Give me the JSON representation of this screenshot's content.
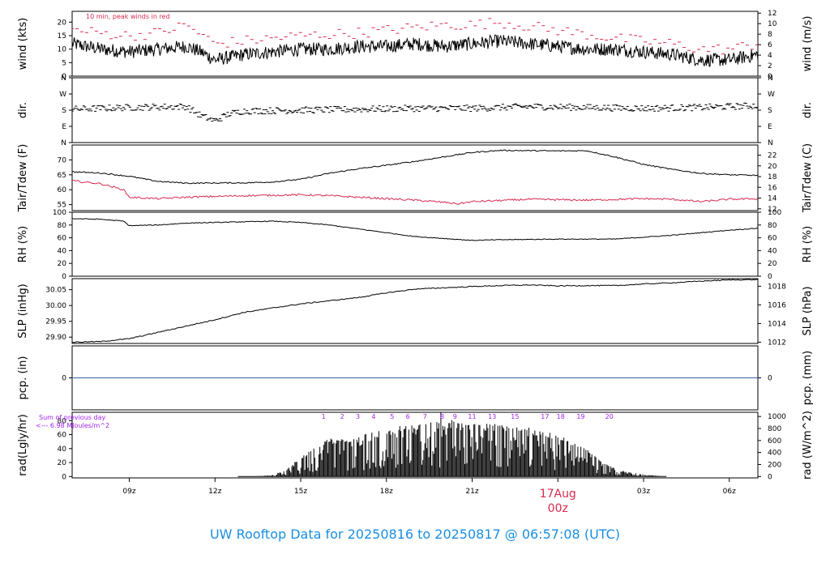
{
  "title": "UW Rooftop Data for 20250816  to  20250817 @ 06:57:08  (UTC)",
  "date_marker": {
    "day": "17Aug",
    "hour": "00z",
    "hours_from_start": 17.0
  },
  "x_axis": {
    "start_hour_utc": 7.0,
    "end_hour_utc": 31.0,
    "ticks": [
      {
        "label": "09z",
        "hours_from_start": 2
      },
      {
        "label": "12z",
        "hours_from_start": 5
      },
      {
        "label": "15z",
        "hours_from_start": 8
      },
      {
        "label": "18z",
        "hours_from_start": 11
      },
      {
        "label": "21z",
        "hours_from_start": 14
      },
      {
        "label": "03z",
        "hours_from_start": 20
      },
      {
        "label": "06z",
        "hours_from_start": 23
      }
    ]
  },
  "chart_data": [
    {
      "id": "wind",
      "type": "line",
      "annotation": "10 min, peak winds in red",
      "left_label": "wind (kts)",
      "right_label": "wind (m/s)",
      "ylim": [
        0,
        24
      ],
      "left_ticks": [
        "0",
        "5",
        "10",
        "15",
        "20"
      ],
      "left_tick_values": [
        0,
        5,
        10,
        15,
        20
      ],
      "right_ticks": [
        "0",
        "2",
        "4",
        "6",
        "8",
        "10",
        "12"
      ],
      "right_tick_values_kts": [
        0,
        3.89,
        7.78,
        11.66,
        15.55,
        19.44,
        23.33
      ],
      "series": [
        {
          "color": "#000000",
          "knots": [
            [
              0,
              12
            ],
            [
              1,
              10
            ],
            [
              2,
              9
            ],
            [
              3,
              10
            ],
            [
              4,
              11
            ],
            [
              4.5,
              9
            ],
            [
              5,
              6
            ],
            [
              6,
              8
            ],
            [
              7,
              9
            ],
            [
              8,
              10
            ],
            [
              9,
              10
            ],
            [
              10,
              11
            ],
            [
              11,
              11
            ],
            [
              12,
              12
            ],
            [
              13,
              11
            ],
            [
              14,
              12
            ],
            [
              15,
              13
            ],
            [
              16,
              12
            ],
            [
              17,
              11
            ],
            [
              18,
              10
            ],
            [
              19,
              10
            ],
            [
              20,
              9
            ],
            [
              21,
              8
            ],
            [
              22,
              6
            ],
            [
              23,
              6
            ],
            [
              24,
              8
            ]
          ],
          "noise": 2.5
        },
        {
          "color": "#d62b4f",
          "knots": [
            [
              0,
              17
            ],
            [
              2,
              15
            ],
            [
              3,
              16
            ],
            [
              4,
              19
            ],
            [
              5,
              12
            ],
            [
              6,
              13
            ],
            [
              8,
              15
            ],
            [
              10,
              16
            ],
            [
              11,
              17
            ],
            [
              13,
              19
            ],
            [
              14,
              19
            ],
            [
              15,
              20
            ],
            [
              17,
              17
            ],
            [
              19,
              14
            ],
            [
              21,
              12
            ],
            [
              22,
              10
            ],
            [
              23,
              10
            ],
            [
              24,
              12
            ]
          ],
          "noise": 2,
          "style": "dash"
        }
      ]
    },
    {
      "id": "dir",
      "type": "scatter",
      "left_label": "dir.",
      "right_label": "dir.",
      "ylim": [
        0,
        360
      ],
      "left_ticks": [
        "N",
        "E",
        "S",
        "W",
        "N"
      ],
      "left_tick_values": [
        0,
        90,
        180,
        270,
        360
      ],
      "right_ticks": [
        "N",
        "E",
        "S",
        "W",
        "N"
      ],
      "right_tick_values": [
        0,
        90,
        180,
        270,
        360
      ],
      "series": [
        {
          "color": "#000000",
          "knots": [
            [
              0,
              185
            ],
            [
              2,
              195
            ],
            [
              4,
              200
            ],
            [
              4.5,
              150
            ],
            [
              5,
              120
            ],
            [
              5.5,
              160
            ],
            [
              6,
              175
            ],
            [
              8,
              180
            ],
            [
              10,
              185
            ],
            [
              12,
              190
            ],
            [
              14,
              190
            ],
            [
              16,
              200
            ],
            [
              18,
              195
            ],
            [
              20,
              190
            ],
            [
              22,
              195
            ],
            [
              24,
              205
            ]
          ],
          "noise": 18
        }
      ]
    },
    {
      "id": "temp",
      "type": "line",
      "left_label": "Tair/Tdew (F)",
      "right_label": "Tair/Tdew (C)",
      "ylim": [
        53,
        75
      ],
      "left_ticks": [
        "55",
        "60",
        "65",
        "70"
      ],
      "left_tick_values": [
        55,
        60,
        65,
        70
      ],
      "right_ticks": [
        "12",
        "14",
        "16",
        "18",
        "20",
        "22"
      ],
      "right_tick_values_f": [
        53.6,
        57.2,
        60.8,
        64.4,
        68,
        71.6
      ],
      "series": [
        {
          "color": "#000000",
          "knots": [
            [
              0,
              66
            ],
            [
              1,
              65.6
            ],
            [
              2,
              64.5
            ],
            [
              3,
              62.8
            ],
            [
              4,
              62.2
            ],
            [
              6,
              62.3
            ],
            [
              7,
              62.6
            ],
            [
              8,
              63.5
            ],
            [
              9,
              65.5
            ],
            [
              10,
              67
            ],
            [
              11,
              68.2
            ],
            [
              12,
              69.5
            ],
            [
              13,
              71
            ],
            [
              14,
              72.5
            ],
            [
              15,
              73.2
            ],
            [
              17,
              73
            ],
            [
              18,
              73.1
            ],
            [
              19,
              71
            ],
            [
              20,
              68.5
            ],
            [
              21,
              66.8
            ],
            [
              22,
              65.5
            ],
            [
              23,
              65
            ],
            [
              24,
              64.8
            ]
          ],
          "noise": 0.2
        },
        {
          "color": "#d62b4f",
          "knots": [
            [
              0,
              63
            ],
            [
              1,
              62
            ],
            [
              1.8,
              60
            ],
            [
              2,
              57.5
            ],
            [
              3,
              57
            ],
            [
              4,
              57.5
            ],
            [
              6,
              58
            ],
            [
              8,
              58.3
            ],
            [
              9,
              58
            ],
            [
              10,
              57.5
            ],
            [
              11,
              57
            ],
            [
              12,
              56.5
            ],
            [
              13,
              55.8
            ],
            [
              13.5,
              55.3
            ],
            [
              14,
              56
            ],
            [
              16,
              56.8
            ],
            [
              18,
              56.5
            ],
            [
              20,
              57
            ],
            [
              21,
              56.8
            ],
            [
              22,
              56
            ],
            [
              23,
              56.8
            ],
            [
              24,
              57
            ]
          ],
          "noise": 0.3
        }
      ]
    },
    {
      "id": "rh",
      "type": "line",
      "left_label": "RH (%)",
      "right_label": "RH (%)",
      "ylim": [
        0,
        100
      ],
      "left_ticks": [
        "0",
        "20",
        "40",
        "60",
        "80",
        "100"
      ],
      "left_tick_values": [
        0,
        20,
        40,
        60,
        80,
        100
      ],
      "right_ticks": [
        "0",
        "20",
        "40",
        "60",
        "80",
        "100"
      ],
      "right_tick_values": [
        0,
        20,
        40,
        60,
        80,
        100
      ],
      "series": [
        {
          "color": "#000000",
          "knots": [
            [
              0,
              90
            ],
            [
              1,
              89
            ],
            [
              1.8,
              86
            ],
            [
              2,
              79
            ],
            [
              3,
              80
            ],
            [
              4,
              83
            ],
            [
              6,
              85
            ],
            [
              7,
              86
            ],
            [
              8,
              84
            ],
            [
              9,
              80
            ],
            [
              10,
              74
            ],
            [
              11,
              68
            ],
            [
              12,
              62
            ],
            [
              13,
              59
            ],
            [
              14,
              56
            ],
            [
              15,
              57
            ],
            [
              17,
              58
            ],
            [
              19,
              58
            ],
            [
              20,
              61
            ],
            [
              21,
              64
            ],
            [
              22,
              68
            ],
            [
              23,
              72
            ],
            [
              24,
              75
            ]
          ],
          "noise": 0.6
        }
      ]
    },
    {
      "id": "slp",
      "type": "line",
      "left_label": "SLP (inHg)",
      "right_label": "SLP (hPa)",
      "ylim": [
        29.88,
        30.085
      ],
      "left_ticks": [
        "29.90",
        "29.95",
        "30.00",
        "30.05"
      ],
      "left_tick_values": [
        29.9,
        29.95,
        30.0,
        30.05
      ],
      "right_ticks": [
        "1012",
        "1014",
        "1016",
        "1018"
      ],
      "right_tick_values_inhg": [
        29.884,
        29.943,
        30.002,
        30.061
      ],
      "series": [
        {
          "color": "#000000",
          "knots": [
            [
              0,
              29.884
            ],
            [
              1,
              29.886
            ],
            [
              2,
              29.895
            ],
            [
              3,
              29.915
            ],
            [
              4,
              29.935
            ],
            [
              5,
              29.955
            ],
            [
              6,
              29.978
            ],
            [
              7,
              29.992
            ],
            [
              8,
              30.005
            ],
            [
              9,
              30.015
            ],
            [
              10,
              30.025
            ],
            [
              11,
              30.04
            ],
            [
              12,
              30.052
            ],
            [
              13,
              30.056
            ],
            [
              14,
              30.06
            ],
            [
              15,
              30.063
            ],
            [
              16,
              30.065
            ],
            [
              17,
              30.062
            ],
            [
              18,
              30.063
            ],
            [
              19,
              30.063
            ],
            [
              20,
              30.068
            ],
            [
              21,
              30.072
            ],
            [
              22,
              30.077
            ],
            [
              23,
              30.081
            ],
            [
              24,
              30.082
            ]
          ],
          "noise": 0.0015
        }
      ]
    },
    {
      "id": "pcp",
      "type": "line",
      "left_label": "pcp. (in)",
      "right_label": "pcp. (mm)",
      "ylim": [
        -1,
        1
      ],
      "left_ticks": [
        "0"
      ],
      "left_tick_values": [
        0
      ],
      "right_ticks": [
        "0"
      ],
      "right_tick_values": [
        0
      ],
      "series": [
        {
          "color": "#3465a4",
          "knots": [
            [
              0,
              0
            ],
            [
              24,
              0
            ]
          ],
          "noise": 0
        }
      ]
    },
    {
      "id": "rad",
      "type": "bar",
      "left_label": "rad(Lgly/hr)",
      "right_label": "rad (W/m^2)",
      "ylim": [
        -2,
        92
      ],
      "left_ticks": [
        "0",
        "20",
        "40",
        "60",
        "80"
      ],
      "left_tick_values": [
        0,
        20,
        40,
        60,
        80
      ],
      "right_ticks": [
        "0",
        "200",
        "400",
        "600",
        "800",
        "1000"
      ],
      "right_tick_values_lgly": [
        0,
        17.2,
        34.4,
        51.6,
        68.8,
        86.0
      ],
      "annotation_sum_label": "Sum of previous day",
      "annotation_sum_value": "<--- 6.98 MJoules/m^2",
      "hour_markers": [
        {
          "label": "1",
          "hours_from_start": 8.8
        },
        {
          "label": "2",
          "hours_from_start": 9.45
        },
        {
          "label": "3",
          "hours_from_start": 10.0
        },
        {
          "label": "4",
          "hours_from_start": 10.55
        },
        {
          "label": "5",
          "hours_from_start": 11.2
        },
        {
          "label": "6",
          "hours_from_start": 11.75
        },
        {
          "label": "7",
          "hours_from_start": 12.35
        },
        {
          "label": "8",
          "hours_from_start": 12.95
        },
        {
          "label": "9",
          "hours_from_start": 13.4
        },
        {
          "label": "11",
          "hours_from_start": 14.0
        },
        {
          "label": "13",
          "hours_from_start": 14.7
        },
        {
          "label": "15",
          "hours_from_start": 15.5
        },
        {
          "label": "17",
          "hours_from_start": 16.55
        },
        {
          "label": "18",
          "hours_from_start": 17.1
        },
        {
          "label": "19",
          "hours_from_start": 17.8
        },
        {
          "label": "20",
          "hours_from_start": 18.8
        }
      ],
      "envelope": [
        [
          5.8,
          0
        ],
        [
          6.5,
          0.5
        ],
        [
          7,
          2
        ],
        [
          7.5,
          10
        ],
        [
          8,
          28
        ],
        [
          8.5,
          42
        ],
        [
          9,
          55
        ],
        [
          10,
          58
        ],
        [
          11,
          70
        ],
        [
          12,
          75
        ],
        [
          13,
          82
        ],
        [
          14,
          78
        ],
        [
          15,
          75
        ],
        [
          16,
          70
        ],
        [
          17,
          60
        ],
        [
          18,
          40
        ],
        [
          18.5,
          22
        ],
        [
          19,
          12
        ],
        [
          19.5,
          6
        ],
        [
          20,
          3
        ],
        [
          20.8,
          0
        ]
      ],
      "peak_value": 92,
      "peak_hour": 12.9
    }
  ]
}
